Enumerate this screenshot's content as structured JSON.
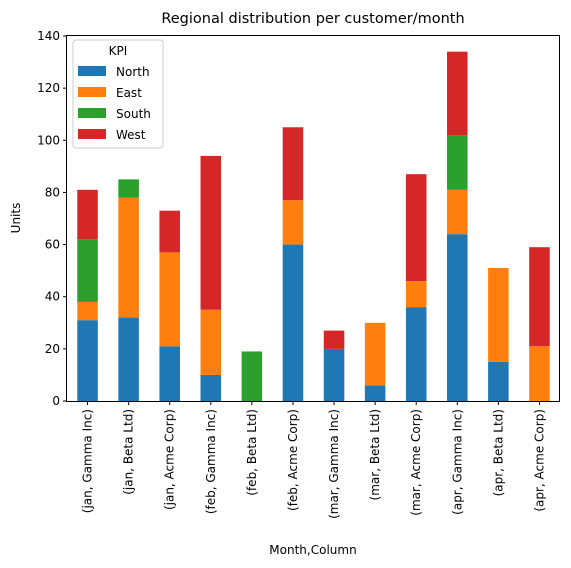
{
  "chart_data": {
    "type": "bar",
    "stacked": true,
    "title": "Regional distribution per customer/month",
    "xlabel": "Month,Column",
    "ylabel": "Units",
    "ylim": [
      0,
      140
    ],
    "yticks": [
      0,
      20,
      40,
      60,
      80,
      100,
      120,
      140
    ],
    "categories": [
      "(jan, Gamma Inc)",
      "(jan, Beta Ltd)",
      "(jan, Acme Corp)",
      "(feb, Gamma Inc)",
      "(feb, Beta Ltd)",
      "(feb, Acme Corp)",
      "(mar, Gamma Inc)",
      "(mar, Beta Ltd)",
      "(mar, Acme Corp)",
      "(apr, Gamma Inc)",
      "(apr, Beta Ltd)",
      "(apr, Acme Corp)"
    ],
    "legend": {
      "title": "KPI",
      "placement": "top-left"
    },
    "series": [
      {
        "name": "North",
        "color": "#1f77b4",
        "values": [
          31,
          32,
          21,
          10,
          0,
          60,
          20,
          6,
          36,
          64,
          15,
          0
        ]
      },
      {
        "name": "East",
        "color": "#ff7f0e",
        "values": [
          7,
          46,
          36,
          25,
          0,
          17,
          0,
          24,
          10,
          17,
          36,
          21
        ]
      },
      {
        "name": "South",
        "color": "#2ca02c",
        "values": [
          24,
          7,
          0,
          0,
          19,
          0,
          0,
          0,
          0,
          21,
          0,
          0
        ]
      },
      {
        "name": "West",
        "color": "#d62728",
        "values": [
          19,
          0,
          16,
          59,
          0,
          28,
          7,
          0,
          41,
          32,
          0,
          38
        ]
      }
    ]
  }
}
